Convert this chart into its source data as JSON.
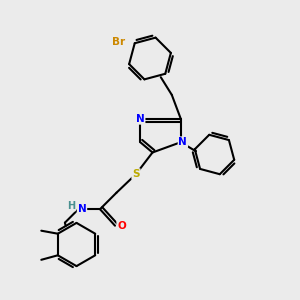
{
  "bg_color": "#ebebeb",
  "atom_colors": {
    "N": "#0000ff",
    "O": "#ff0000",
    "S": "#bbaa00",
    "Br": "#cc8800",
    "H": "#4a9090",
    "C": "#000000"
  },
  "bond_color": "#000000",
  "bond_lw": 1.5
}
